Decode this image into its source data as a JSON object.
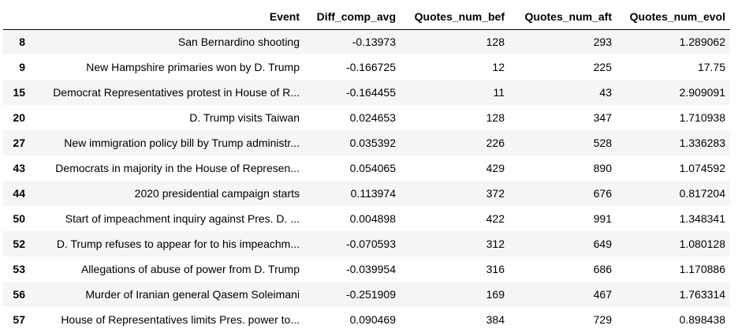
{
  "table": {
    "index_header": "",
    "columns": [
      "Event",
      "Diff_comp_avg",
      "Quotes_num_bef",
      "Quotes_num_aft",
      "Quotes_num_evol"
    ],
    "rows": [
      {
        "index": "8",
        "event": "San Bernardino shooting",
        "diff_comp_avg": "-0.13973",
        "quotes_num_bef": "128",
        "quotes_num_aft": "293",
        "quotes_num_evol": "1.289062"
      },
      {
        "index": "9",
        "event": "New Hampshire primaries won by D. Trump",
        "diff_comp_avg": "-0.166725",
        "quotes_num_bef": "12",
        "quotes_num_aft": "225",
        "quotes_num_evol": "17.75"
      },
      {
        "index": "15",
        "event": "Democrat Representatives protest in House of R...",
        "diff_comp_avg": "-0.164455",
        "quotes_num_bef": "11",
        "quotes_num_aft": "43",
        "quotes_num_evol": "2.909091"
      },
      {
        "index": "20",
        "event": "D. Trump visits Taiwan",
        "diff_comp_avg": "0.024653",
        "quotes_num_bef": "128",
        "quotes_num_aft": "347",
        "quotes_num_evol": "1.710938"
      },
      {
        "index": "27",
        "event": "New immigration policy bill by Trump administr...",
        "diff_comp_avg": "0.035392",
        "quotes_num_bef": "226",
        "quotes_num_aft": "528",
        "quotes_num_evol": "1.336283"
      },
      {
        "index": "43",
        "event": "Democrats in majority in the House of Represen...",
        "diff_comp_avg": "0.054065",
        "quotes_num_bef": "429",
        "quotes_num_aft": "890",
        "quotes_num_evol": "1.074592"
      },
      {
        "index": "44",
        "event": "2020 presidential campaign starts",
        "diff_comp_avg": "0.113974",
        "quotes_num_bef": "372",
        "quotes_num_aft": "676",
        "quotes_num_evol": "0.817204"
      },
      {
        "index": "50",
        "event": "Start of impeachment inquiry against Pres. D. ...",
        "diff_comp_avg": "0.004898",
        "quotes_num_bef": "422",
        "quotes_num_aft": "991",
        "quotes_num_evol": "1.348341"
      },
      {
        "index": "52",
        "event": "D. Trump refuses to appear for to his impeachm...",
        "diff_comp_avg": "-0.070593",
        "quotes_num_bef": "312",
        "quotes_num_aft": "649",
        "quotes_num_evol": "1.080128"
      },
      {
        "index": "53",
        "event": "Allegations of abuse of power from D. Trump",
        "diff_comp_avg": "-0.039954",
        "quotes_num_bef": "316",
        "quotes_num_aft": "686",
        "quotes_num_evol": "1.170886"
      },
      {
        "index": "56",
        "event": "Murder of Iranian general Qasem Soleimani",
        "diff_comp_avg": "-0.251909",
        "quotes_num_bef": "169",
        "quotes_num_aft": "467",
        "quotes_num_evol": "1.763314"
      },
      {
        "index": "57",
        "event": "House of Representatives limits Pres. power to...",
        "diff_comp_avg": "0.090469",
        "quotes_num_bef": "384",
        "quotes_num_aft": "729",
        "quotes_num_evol": "0.898438"
      }
    ]
  },
  "colors": {
    "row_stripe": "#f5f5f5",
    "header_border": "#000000",
    "text": "#000000"
  }
}
